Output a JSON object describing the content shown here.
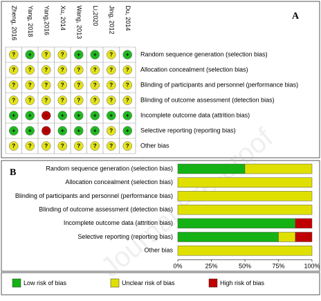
{
  "panel_a": {
    "label": "A",
    "studies": [
      "Zheng, 2016",
      "Yang, 2018",
      "Yang,2016",
      "Xu, 2014",
      "Wang, 2013",
      "Li,2020",
      "Jing, 2012",
      "Du, 2014"
    ],
    "domains": [
      "Random sequence generation (selection bias)",
      "Allocation concealment (selection bias)",
      "Blinding of participants and personnel (performance bias)",
      "Blinding of outcome assessment (detection bias)",
      "Incomplete outcome data (attrition bias)",
      "Selective reporting (reporting bias)",
      "Other bias"
    ],
    "judgments": [
      [
        "?",
        "+",
        "?",
        "?",
        "+",
        "+",
        "?",
        "+"
      ],
      [
        "?",
        "?",
        "?",
        "?",
        "?",
        "?",
        "?",
        "?"
      ],
      [
        "?",
        "?",
        "?",
        "?",
        "?",
        "?",
        "?",
        "?"
      ],
      [
        "?",
        "?",
        "?",
        "?",
        "?",
        "?",
        "?",
        "?"
      ],
      [
        "+",
        "+",
        "-",
        "+",
        "+",
        "+",
        "+",
        "+"
      ],
      [
        "+",
        "+",
        "-",
        "+",
        "+",
        "+",
        "?",
        "+"
      ],
      [
        "?",
        "?",
        "?",
        "?",
        "?",
        "?",
        "?",
        "?"
      ]
    ],
    "symbol_colors": {
      "+": "#22b822",
      "?": "#e3e31c",
      "-": "#b80000"
    }
  },
  "watermark": "Journal Pre-proof",
  "chart_data": {
    "type": "stacked-barh",
    "label": "B",
    "categories": [
      "Random sequence generation (selection bias)",
      "Allocation concealment (selection bias)",
      "Blinding of participants and personnel (performance bias)",
      "Blinding of outcome assessment (detection bias)",
      "Incomplete outcome data (attrition bias)",
      "Selective reporting (reporting bias)",
      "Other bias"
    ],
    "series": [
      {
        "name": "Low risk of bias",
        "color": "#14b214",
        "values": [
          50,
          0,
          0,
          0,
          87.5,
          75,
          0
        ]
      },
      {
        "name": "Unclear risk of bias",
        "color": "#e0e000",
        "values": [
          50,
          100,
          100,
          100,
          0,
          12.5,
          100
        ]
      },
      {
        "name": "High risk of bias",
        "color": "#c00000",
        "values": [
          0,
          0,
          0,
          0,
          12.5,
          12.5,
          0
        ]
      }
    ],
    "xlim": [
      0,
      100
    ],
    "xticks": [
      {
        "value": 0,
        "label": "0%"
      },
      {
        "value": 25,
        "label": "25%"
      },
      {
        "value": 50,
        "label": "50%"
      },
      {
        "value": 75,
        "label": "75%"
      },
      {
        "value": 100,
        "label": "100%"
      }
    ]
  }
}
